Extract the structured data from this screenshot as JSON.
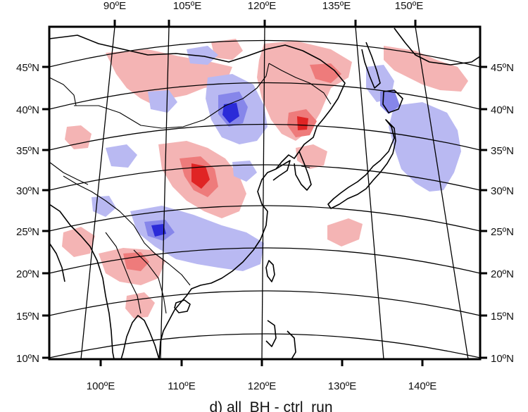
{
  "map": {
    "caption": "d) all_BH - ctrl_run",
    "projection": "lambert-conformal-conic",
    "left_axis_labels": [
      "45ºN",
      "40ºN",
      "35ºN",
      "30ºN",
      "25ºN",
      "20ºN",
      "15ºN",
      "10ºN"
    ],
    "right_axis_labels": [
      "45ºN",
      "40ºN",
      "35ºN",
      "30ºN",
      "25ºN",
      "20ºN",
      "15ºN",
      "10ºN"
    ],
    "top_axis_labels": [
      "90ºE",
      "105ºE",
      "120ºE",
      "135ºE",
      "150ºE"
    ],
    "bottom_axis_labels": [
      "100ºE",
      "110ºE",
      "120ºE",
      "130ºE",
      "140ºE"
    ],
    "colors": {
      "positive_light": "#f4b4b4",
      "positive_mid": "#ee7b7b",
      "positive_strong": "#e02424",
      "negative_light": "#b9b9f2",
      "negative_mid": "#8686ea",
      "negative_strong": "#2b2bd8",
      "coastline": "#000000"
    }
  }
}
